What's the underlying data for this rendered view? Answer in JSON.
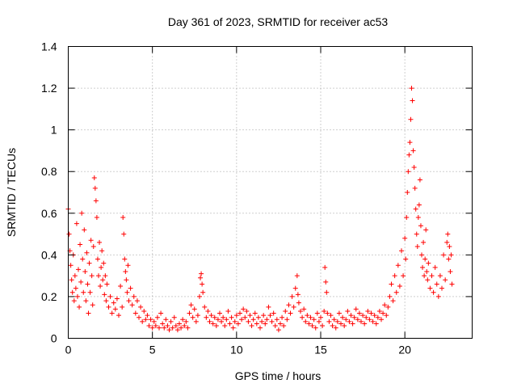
{
  "chart_data": {
    "type": "scatter",
    "title": "Day 361 of 2023, SRMTID for receiver ac53",
    "xlabel": "GPS time / hours",
    "ylabel": "SRMTID / TECUs",
    "xlim": [
      0,
      24
    ],
    "ylim": [
      0,
      1.4
    ],
    "xticks": [
      0,
      5,
      10,
      15,
      20
    ],
    "xtick_labels": [
      "0",
      "5",
      "10",
      "15",
      "20"
    ],
    "yticks": [
      0,
      0.2,
      0.4,
      0.6,
      0.8,
      1.0,
      1.2,
      1.4
    ],
    "ytick_labels": [
      "0",
      "0.2",
      "0.4",
      "0.6",
      "0.8",
      "1",
      "1.2",
      "1.4"
    ],
    "grid": true,
    "marker": "plus",
    "series_color": "#ff0000",
    "series": [
      {
        "name": "SRMTID",
        "points": [
          [
            0.0,
            0.62
          ],
          [
            0.05,
            0.5
          ],
          [
            0.1,
            0.42
          ],
          [
            0.15,
            0.35
          ],
          [
            0.2,
            0.28
          ],
          [
            0.25,
            0.22
          ],
          [
            0.3,
            0.4
          ],
          [
            0.35,
            0.18
          ],
          [
            0.4,
            0.3
          ],
          [
            0.45,
            0.24
          ],
          [
            0.5,
            0.55
          ],
          [
            0.55,
            0.2
          ],
          [
            0.6,
            0.33
          ],
          [
            0.65,
            0.15
          ],
          [
            0.7,
            0.45
          ],
          [
            0.75,
            0.27
          ],
          [
            0.8,
            0.6
          ],
          [
            0.85,
            0.38
          ],
          [
            0.9,
            0.22
          ],
          [
            0.95,
            0.52
          ],
          [
            1.0,
            0.32
          ],
          [
            1.05,
            0.18
          ],
          [
            1.1,
            0.41
          ],
          [
            1.15,
            0.26
          ],
          [
            1.2,
            0.12
          ],
          [
            1.25,
            0.36
          ],
          [
            1.3,
            0.22
          ],
          [
            1.35,
            0.47
          ],
          [
            1.4,
            0.3
          ],
          [
            1.45,
            0.16
          ],
          [
            1.5,
            0.44
          ],
          [
            1.55,
            0.77
          ],
          [
            1.6,
            0.72
          ],
          [
            1.65,
            0.66
          ],
          [
            1.7,
            0.58
          ],
          [
            1.75,
            0.38
          ],
          [
            1.8,
            0.3
          ],
          [
            1.85,
            0.46
          ],
          [
            1.9,
            0.25
          ],
          [
            1.95,
            0.34
          ],
          [
            2.0,
            0.42
          ],
          [
            2.05,
            0.28
          ],
          [
            2.1,
            0.36
          ],
          [
            2.15,
            0.21
          ],
          [
            2.2,
            0.3
          ],
          [
            2.25,
            0.18
          ],
          [
            2.3,
            0.26
          ],
          [
            2.4,
            0.15
          ],
          [
            2.5,
            0.2
          ],
          [
            2.6,
            0.12
          ],
          [
            2.7,
            0.17
          ],
          [
            2.8,
            0.14
          ],
          [
            2.9,
            0.19
          ],
          [
            3.0,
            0.11
          ],
          [
            3.1,
            0.25
          ],
          [
            3.2,
            0.15
          ],
          [
            3.25,
            0.58
          ],
          [
            3.3,
            0.5
          ],
          [
            3.35,
            0.38
          ],
          [
            3.4,
            0.32
          ],
          [
            3.45,
            0.28
          ],
          [
            3.5,
            0.22
          ],
          [
            3.55,
            0.35
          ],
          [
            3.6,
            0.18
          ],
          [
            3.7,
            0.24
          ],
          [
            3.8,
            0.16
          ],
          [
            3.9,
            0.2
          ],
          [
            4.0,
            0.12
          ],
          [
            4.1,
            0.18
          ],
          [
            4.2,
            0.1
          ],
          [
            4.3,
            0.15
          ],
          [
            4.4,
            0.08
          ],
          [
            4.5,
            0.13
          ],
          [
            4.6,
            0.09
          ],
          [
            4.7,
            0.11
          ],
          [
            4.8,
            0.06
          ],
          [
            4.9,
            0.09
          ],
          [
            5.0,
            0.05
          ],
          [
            5.1,
            0.08
          ],
          [
            5.2,
            0.06
          ],
          [
            5.3,
            0.1
          ],
          [
            5.4,
            0.05
          ],
          [
            5.5,
            0.12
          ],
          [
            5.6,
            0.07
          ],
          [
            5.7,
            0.05
          ],
          [
            5.8,
            0.09
          ],
          [
            5.9,
            0.06
          ],
          [
            6.0,
            0.04
          ],
          [
            6.1,
            0.08
          ],
          [
            6.2,
            0.05
          ],
          [
            6.3,
            0.1
          ],
          [
            6.4,
            0.06
          ],
          [
            6.5,
            0.04
          ],
          [
            6.6,
            0.07
          ],
          [
            6.7,
            0.05
          ],
          [
            6.8,
            0.09
          ],
          [
            6.9,
            0.06
          ],
          [
            7.0,
            0.08
          ],
          [
            7.1,
            0.05
          ],
          [
            7.2,
            0.12
          ],
          [
            7.3,
            0.16
          ],
          [
            7.4,
            0.1
          ],
          [
            7.5,
            0.14
          ],
          [
            7.6,
            0.08
          ],
          [
            7.7,
            0.11
          ],
          [
            7.8,
            0.2
          ],
          [
            7.85,
            0.29
          ],
          [
            7.9,
            0.31
          ],
          [
            7.95,
            0.26
          ],
          [
            8.0,
            0.22
          ],
          [
            8.1,
            0.15
          ],
          [
            8.2,
            0.1
          ],
          [
            8.3,
            0.13
          ],
          [
            8.4,
            0.08
          ],
          [
            8.5,
            0.11
          ],
          [
            8.6,
            0.07
          ],
          [
            8.7,
            0.1
          ],
          [
            8.8,
            0.06
          ],
          [
            8.9,
            0.09
          ],
          [
            9.0,
            0.12
          ],
          [
            9.1,
            0.08
          ],
          [
            9.2,
            0.1
          ],
          [
            9.3,
            0.06
          ],
          [
            9.4,
            0.09
          ],
          [
            9.5,
            0.13
          ],
          [
            9.6,
            0.07
          ],
          [
            9.7,
            0.1
          ],
          [
            9.8,
            0.05
          ],
          [
            9.9,
            0.08
          ],
          [
            10.0,
            0.11
          ],
          [
            10.1,
            0.07
          ],
          [
            10.2,
            0.12
          ],
          [
            10.3,
            0.09
          ],
          [
            10.4,
            0.14
          ],
          [
            10.5,
            0.1
          ],
          [
            10.6,
            0.13
          ],
          [
            10.7,
            0.08
          ],
          [
            10.8,
            0.11
          ],
          [
            10.9,
            0.06
          ],
          [
            11.0,
            0.09
          ],
          [
            11.1,
            0.12
          ],
          [
            11.2,
            0.07
          ],
          [
            11.3,
            0.1
          ],
          [
            11.4,
            0.05
          ],
          [
            11.5,
            0.08
          ],
          [
            11.6,
            0.11
          ],
          [
            11.7,
            0.07
          ],
          [
            11.8,
            0.09
          ],
          [
            11.9,
            0.15
          ],
          [
            12.0,
            0.11
          ],
          [
            12.1,
            0.08
          ],
          [
            12.2,
            0.12
          ],
          [
            12.3,
            0.06
          ],
          [
            12.4,
            0.09
          ],
          [
            12.5,
            0.04
          ],
          [
            12.6,
            0.07
          ],
          [
            12.7,
            0.1
          ],
          [
            12.8,
            0.06
          ],
          [
            12.9,
            0.13
          ],
          [
            13.0,
            0.09
          ],
          [
            13.1,
            0.16
          ],
          [
            13.2,
            0.12
          ],
          [
            13.3,
            0.2
          ],
          [
            13.4,
            0.15
          ],
          [
            13.5,
            0.24
          ],
          [
            13.6,
            0.3
          ],
          [
            13.65,
            0.21
          ],
          [
            13.7,
            0.17
          ],
          [
            13.8,
            0.13
          ],
          [
            13.9,
            0.1
          ],
          [
            14.0,
            0.14
          ],
          [
            14.1,
            0.08
          ],
          [
            14.2,
            0.11
          ],
          [
            14.3,
            0.07
          ],
          [
            14.4,
            0.1
          ],
          [
            14.5,
            0.06
          ],
          [
            14.6,
            0.09
          ],
          [
            14.7,
            0.05
          ],
          [
            14.8,
            0.12
          ],
          [
            14.9,
            0.08
          ],
          [
            15.0,
            0.1
          ],
          [
            15.1,
            0.06
          ],
          [
            15.2,
            0.13
          ],
          [
            15.25,
            0.34
          ],
          [
            15.3,
            0.27
          ],
          [
            15.35,
            0.22
          ],
          [
            15.4,
            0.12
          ],
          [
            15.5,
            0.08
          ],
          [
            15.6,
            0.11
          ],
          [
            15.7,
            0.06
          ],
          [
            15.8,
            0.09
          ],
          [
            15.9,
            0.05
          ],
          [
            16.0,
            0.08
          ],
          [
            16.1,
            0.12
          ],
          [
            16.2,
            0.07
          ],
          [
            16.3,
            0.1
          ],
          [
            16.4,
            0.06
          ],
          [
            16.5,
            0.09
          ],
          [
            16.6,
            0.13
          ],
          [
            16.7,
            0.08
          ],
          [
            16.8,
            0.11
          ],
          [
            16.9,
            0.07
          ],
          [
            17.0,
            0.1
          ],
          [
            17.1,
            0.14
          ],
          [
            17.2,
            0.09
          ],
          [
            17.3,
            0.12
          ],
          [
            17.4,
            0.08
          ],
          [
            17.5,
            0.11
          ],
          [
            17.6,
            0.07
          ],
          [
            17.7,
            0.1
          ],
          [
            17.8,
            0.13
          ],
          [
            17.9,
            0.09
          ],
          [
            18.0,
            0.12
          ],
          [
            18.1,
            0.08
          ],
          [
            18.2,
            0.11
          ],
          [
            18.3,
            0.07
          ],
          [
            18.4,
            0.1
          ],
          [
            18.5,
            0.13
          ],
          [
            18.6,
            0.09
          ],
          [
            18.7,
            0.12
          ],
          [
            18.8,
            0.16
          ],
          [
            18.9,
            0.11
          ],
          [
            19.0,
            0.15
          ],
          [
            19.1,
            0.2
          ],
          [
            19.2,
            0.26
          ],
          [
            19.3,
            0.18
          ],
          [
            19.4,
            0.3
          ],
          [
            19.5,
            0.22
          ],
          [
            19.6,
            0.35
          ],
          [
            19.7,
            0.25
          ],
          [
            19.8,
            0.42
          ],
          [
            19.9,
            0.3
          ],
          [
            20.0,
            0.48
          ],
          [
            20.05,
            0.38
          ],
          [
            20.1,
            0.58
          ],
          [
            20.15,
            0.7
          ],
          [
            20.2,
            0.8
          ],
          [
            20.25,
            0.88
          ],
          [
            20.3,
            0.94
          ],
          [
            20.35,
            1.05
          ],
          [
            20.4,
            1.2
          ],
          [
            20.45,
            1.14
          ],
          [
            20.5,
            0.9
          ],
          [
            20.55,
            0.82
          ],
          [
            20.6,
            0.72
          ],
          [
            20.65,
            0.62
          ],
          [
            20.7,
            0.5
          ],
          [
            20.75,
            0.44
          ],
          [
            20.8,
            0.58
          ],
          [
            20.85,
            0.64
          ],
          [
            20.9,
            0.76
          ],
          [
            20.95,
            0.54
          ],
          [
            21.0,
            0.4
          ],
          [
            21.05,
            0.34
          ],
          [
            21.1,
            0.46
          ],
          [
            21.15,
            0.3
          ],
          [
            21.2,
            0.38
          ],
          [
            21.25,
            0.52
          ],
          [
            21.3,
            0.32
          ],
          [
            21.35,
            0.28
          ],
          [
            21.4,
            0.36
          ],
          [
            21.5,
            0.24
          ],
          [
            21.6,
            0.3
          ],
          [
            21.7,
            0.22
          ],
          [
            21.8,
            0.34
          ],
          [
            21.9,
            0.26
          ],
          [
            22.0,
            0.2
          ],
          [
            22.1,
            0.3
          ],
          [
            22.2,
            0.24
          ],
          [
            22.3,
            0.4
          ],
          [
            22.4,
            0.28
          ],
          [
            22.5,
            0.46
          ],
          [
            22.55,
            0.5
          ],
          [
            22.6,
            0.38
          ],
          [
            22.65,
            0.44
          ],
          [
            22.7,
            0.32
          ],
          [
            22.75,
            0.4
          ],
          [
            22.8,
            0.26
          ]
        ]
      }
    ]
  }
}
